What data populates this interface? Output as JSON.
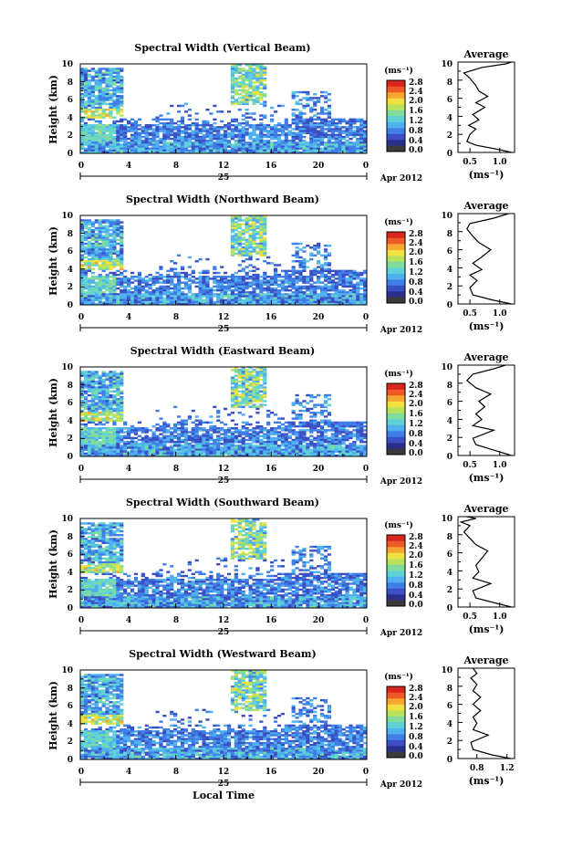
{
  "colors": {
    "scale": [
      "#2b2f8c",
      "#3b4fc4",
      "#3f7ee6",
      "#4fb0ee",
      "#5fd2d8",
      "#7fdc9c",
      "#b9e25c",
      "#f0e040",
      "#f6a530",
      "#ee5a26",
      "#d8261e"
    ],
    "zero": "#3a3a3a",
    "profile": "#000000"
  },
  "figure": {
    "x_tick_labels": [
      "0",
      "4",
      "8",
      "12",
      "16",
      "20",
      "0"
    ],
    "date_label": "25",
    "month_label": "Apr 2012",
    "x_axis_label": "Local Time",
    "y_axis_label": "Height (km)",
    "y_tick_labels": [
      "0",
      "2",
      "4",
      "6",
      "8",
      "10"
    ],
    "colorbar_unit": "(ms⁻¹)",
    "colorbar_tick_labels": [
      "0.0",
      "0.4",
      "0.8",
      "1.2",
      "1.6",
      "2.0",
      "2.4",
      "2.8"
    ],
    "profile_title": "Average",
    "profile_xlabel": "(ms⁻¹)"
  },
  "chart_data": [
    {
      "type": "heatmap",
      "title": "Spectral Width (Vertical Beam)",
      "profile_ticks": [
        "0.5",
        "1.0"
      ],
      "profile_xlim": [
        0.3,
        1.25
      ],
      "profile_points": [
        [
          1.2,
          0.0
        ],
        [
          1.0,
          0.3
        ],
        [
          0.6,
          0.8
        ],
        [
          0.45,
          1.2
        ],
        [
          0.5,
          2.0
        ],
        [
          0.6,
          2.6
        ],
        [
          0.48,
          3.0
        ],
        [
          0.65,
          3.6
        ],
        [
          0.55,
          4.2
        ],
        [
          0.75,
          5.0
        ],
        [
          0.6,
          5.5
        ],
        [
          0.8,
          6.2
        ],
        [
          0.65,
          6.8
        ],
        [
          0.6,
          7.4
        ],
        [
          0.5,
          8.2
        ],
        [
          0.4,
          8.8
        ],
        [
          0.7,
          9.4
        ],
        [
          1.1,
          9.8
        ],
        [
          1.2,
          10.0
        ]
      ]
    },
    {
      "type": "heatmap",
      "title": "Spectral Width (Northward Beam)",
      "profile_ticks": [
        "0.5",
        "1.0"
      ],
      "profile_xlim": [
        0.3,
        1.25
      ],
      "profile_points": [
        [
          1.2,
          0.0
        ],
        [
          0.9,
          0.4
        ],
        [
          0.55,
          1.0
        ],
        [
          0.5,
          1.8
        ],
        [
          0.62,
          2.6
        ],
        [
          0.5,
          3.2
        ],
        [
          0.7,
          3.8
        ],
        [
          0.55,
          4.5
        ],
        [
          0.7,
          5.2
        ],
        [
          0.85,
          6.0
        ],
        [
          0.65,
          6.8
        ],
        [
          0.55,
          7.5
        ],
        [
          0.45,
          8.3
        ],
        [
          0.5,
          8.9
        ],
        [
          0.9,
          9.5
        ],
        [
          1.15,
          10.0
        ]
      ]
    },
    {
      "type": "heatmap",
      "title": "Spectral Width (Eastward Beam)",
      "profile_ticks": [
        "0.5",
        "1.0"
      ],
      "profile_xlim": [
        0.3,
        1.25
      ],
      "profile_points": [
        [
          1.2,
          0.0
        ],
        [
          0.95,
          0.5
        ],
        [
          0.6,
          1.2
        ],
        [
          0.55,
          1.9
        ],
        [
          0.9,
          2.8
        ],
        [
          0.55,
          3.3
        ],
        [
          0.7,
          4.0
        ],
        [
          0.6,
          4.6
        ],
        [
          0.75,
          5.4
        ],
        [
          0.65,
          6.0
        ],
        [
          0.85,
          6.8
        ],
        [
          0.6,
          7.5
        ],
        [
          0.45,
          8.3
        ],
        [
          0.55,
          9.0
        ],
        [
          0.9,
          9.6
        ],
        [
          1.1,
          10.0
        ]
      ]
    },
    {
      "type": "heatmap",
      "title": "Spectral Width (Southward Beam)",
      "profile_ticks": [
        "0.5",
        "1.0"
      ],
      "profile_xlim": [
        0.3,
        1.25
      ],
      "profile_points": [
        [
          1.2,
          0.0
        ],
        [
          0.95,
          0.4
        ],
        [
          0.6,
          1.0
        ],
        [
          0.55,
          1.8
        ],
        [
          0.85,
          2.6
        ],
        [
          0.55,
          3.2
        ],
        [
          0.65,
          3.9
        ],
        [
          0.6,
          4.6
        ],
        [
          0.7,
          5.4
        ],
        [
          0.8,
          6.2
        ],
        [
          0.6,
          6.9
        ],
        [
          0.5,
          7.6
        ],
        [
          0.4,
          8.3
        ],
        [
          0.5,
          9.0
        ],
        [
          0.35,
          9.4
        ],
        [
          0.6,
          9.8
        ],
        [
          0.45,
          10.0
        ]
      ]
    },
    {
      "type": "heatmap",
      "title": "Spectral Width (Westward Beam)",
      "profile_ticks": [
        "0.8",
        "1.2"
      ],
      "profile_xlim": [
        0.55,
        1.3
      ],
      "profile_points": [
        [
          1.25,
          0.0
        ],
        [
          1.0,
          0.4
        ],
        [
          0.75,
          1.0
        ],
        [
          0.72,
          1.8
        ],
        [
          0.95,
          2.6
        ],
        [
          0.75,
          3.2
        ],
        [
          0.8,
          3.9
        ],
        [
          0.75,
          4.6
        ],
        [
          0.85,
          5.3
        ],
        [
          0.75,
          6.0
        ],
        [
          0.85,
          6.8
        ],
        [
          0.75,
          7.5
        ],
        [
          0.8,
          8.2
        ],
        [
          0.72,
          8.9
        ],
        [
          0.8,
          9.4
        ],
        [
          0.75,
          10.0
        ]
      ]
    }
  ]
}
